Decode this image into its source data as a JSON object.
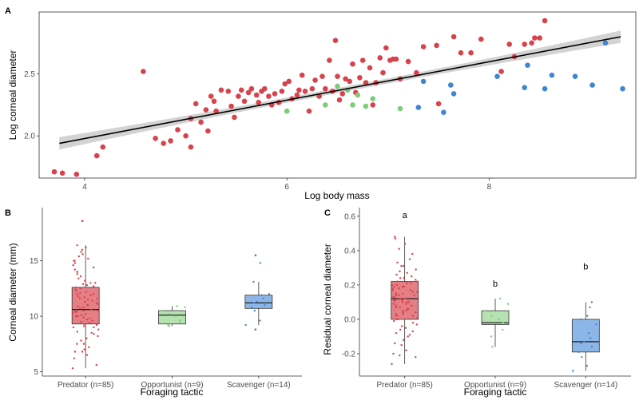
{
  "colors": {
    "Predator": "#d6434d",
    "Opportunist": "#7ecc7a",
    "Scavenger": "#3f86d1",
    "Predator_fill": "#e57f86",
    "Opportunist_fill": "#b5e2b0",
    "Scavenger_fill": "#8db6e8",
    "regression": "#000000",
    "ci_band": "#c8c8c8"
  },
  "chart_data": [
    {
      "panel": "A",
      "type": "scatter",
      "title": "",
      "xlabel": "Log body mass",
      "ylabel": "Log corneal diameter",
      "xlim": [
        3.55,
        9.45
      ],
      "ylim": [
        1.66,
        3.0
      ],
      "xticks": [
        4,
        6,
        8
      ],
      "yticks": [
        2.0,
        2.5
      ],
      "ytick_labels": [
        "2.0",
        "2.5"
      ],
      "grid": false,
      "legend": "none",
      "regression": {
        "x": [
          3.75,
          9.3
        ],
        "y": [
          1.94,
          2.8
        ],
        "ci_halfwidth_ends": 0.05,
        "ci_halfwidth_mid": 0.02
      },
      "series": [
        {
          "name": "Predator",
          "points": [
            [
              3.7,
              1.71
            ],
            [
              3.78,
              1.7
            ],
            [
              3.92,
              1.69
            ],
            [
              4.12,
              1.84
            ],
            [
              4.18,
              1.91
            ],
            [
              4.58,
              2.52
            ],
            [
              4.7,
              1.98
            ],
            [
              4.78,
              1.94
            ],
            [
              4.85,
              1.96
            ],
            [
              4.92,
              2.05
            ],
            [
              5.0,
              2.0
            ],
            [
              5.05,
              1.91
            ],
            [
              5.05,
              2.14
            ],
            [
              5.1,
              2.26
            ],
            [
              5.15,
              2.11
            ],
            [
              5.2,
              2.21
            ],
            [
              5.22,
              2.04
            ],
            [
              5.25,
              2.32
            ],
            [
              5.28,
              2.28
            ],
            [
              5.3,
              2.2
            ],
            [
              5.35,
              2.37
            ],
            [
              5.42,
              2.36
            ],
            [
              5.45,
              2.24
            ],
            [
              5.48,
              2.15
            ],
            [
              5.52,
              2.32
            ],
            [
              5.55,
              2.37
            ],
            [
              5.58,
              2.28
            ],
            [
              5.62,
              2.35
            ],
            [
              5.65,
              2.38
            ],
            [
              5.7,
              2.33
            ],
            [
              5.72,
              2.27
            ],
            [
              5.75,
              2.36
            ],
            [
              5.78,
              2.38
            ],
            [
              5.82,
              2.32
            ],
            [
              5.85,
              2.25
            ],
            [
              5.88,
              2.34
            ],
            [
              5.92,
              2.27
            ],
            [
              5.95,
              2.36
            ],
            [
              5.98,
              2.42
            ],
            [
              6.02,
              2.44
            ],
            [
              6.05,
              2.3
            ],
            [
              6.1,
              2.33
            ],
            [
              6.12,
              2.37
            ],
            [
              6.15,
              2.49
            ],
            [
              6.18,
              2.36
            ],
            [
              6.22,
              2.2
            ],
            [
              6.25,
              2.38
            ],
            [
              6.28,
              2.45
            ],
            [
              6.32,
              2.32
            ],
            [
              6.35,
              2.48
            ],
            [
              6.38,
              2.38
            ],
            [
              6.42,
              2.61
            ],
            [
              6.45,
              2.36
            ],
            [
              6.48,
              2.77
            ],
            [
              6.5,
              2.48
            ],
            [
              6.52,
              2.29
            ],
            [
              6.55,
              2.34
            ],
            [
              6.58,
              2.46
            ],
            [
              6.62,
              2.44
            ],
            [
              6.65,
              2.58
            ],
            [
              6.68,
              2.35
            ],
            [
              6.72,
              2.47
            ],
            [
              6.75,
              2.61
            ],
            [
              6.78,
              2.43
            ],
            [
              6.82,
              2.55
            ],
            [
              6.85,
              2.25
            ],
            [
              6.88,
              2.43
            ],
            [
              6.92,
              2.63
            ],
            [
              6.95,
              2.51
            ],
            [
              6.98,
              2.71
            ],
            [
              7.02,
              2.61
            ],
            [
              7.05,
              2.62
            ],
            [
              7.08,
              2.62
            ],
            [
              7.12,
              2.46
            ],
            [
              7.2,
              2.6
            ],
            [
              7.28,
              2.51
            ],
            [
              7.35,
              2.72
            ],
            [
              7.48,
              2.73
            ],
            [
              7.5,
              2.26
            ],
            [
              7.65,
              2.8
            ],
            [
              7.72,
              2.67
            ],
            [
              7.82,
              2.67
            ],
            [
              7.92,
              2.78
            ],
            [
              8.12,
              2.52
            ],
            [
              8.2,
              2.74
            ],
            [
              8.25,
              2.64
            ],
            [
              8.35,
              2.74
            ],
            [
              8.42,
              2.75
            ],
            [
              8.45,
              2.79
            ],
            [
              8.5,
              2.79
            ],
            [
              8.55,
              2.93
            ]
          ]
        },
        {
          "name": "Opportunist",
          "points": [
            [
              6.0,
              2.2
            ],
            [
              6.38,
              2.25
            ],
            [
              6.5,
              2.4
            ],
            [
              6.6,
              2.37
            ],
            [
              6.65,
              2.25
            ],
            [
              6.7,
              2.33
            ],
            [
              6.78,
              2.24
            ],
            [
              6.85,
              2.3
            ],
            [
              7.12,
              2.22
            ]
          ]
        },
        {
          "name": "Scavenger",
          "points": [
            [
              7.3,
              2.23
            ],
            [
              7.35,
              2.44
            ],
            [
              7.55,
              2.19
            ],
            [
              7.62,
              2.41
            ],
            [
              7.65,
              2.34
            ],
            [
              8.08,
              2.48
            ],
            [
              8.35,
              2.39
            ],
            [
              8.38,
              2.57
            ],
            [
              8.55,
              2.38
            ],
            [
              8.62,
              2.49
            ],
            [
              8.85,
              2.48
            ],
            [
              9.02,
              2.41
            ],
            [
              9.15,
              2.75
            ],
            [
              9.32,
              2.38
            ]
          ]
        }
      ]
    },
    {
      "panel": "B",
      "type": "box",
      "title": "",
      "xlabel": "Foraging tactic",
      "ylabel": "Corneal diameter (mm)",
      "ylim": [
        4.6,
        19.8
      ],
      "yticks": [
        5,
        10,
        15
      ],
      "categories": [
        "Predator (n=85)",
        "Opportunist (n=9)",
        "Scavenger (n=14)"
      ],
      "series_names": [
        "Predator",
        "Opportunist",
        "Scavenger"
      ],
      "boxes": [
        {
          "whisker_low": 5.3,
          "q1": 9.3,
          "median": 10.6,
          "q3": 12.6,
          "whisker_high": 16.4
        },
        {
          "whisker_low": 9.1,
          "q1": 9.3,
          "median": 10.1,
          "q3": 10.5,
          "whisker_high": 10.9
        },
        {
          "whisker_low": 9.2,
          "q1": 10.7,
          "median": 11.2,
          "q3": 11.9,
          "whisker_high": 13.1
        }
      ],
      "jitter": [
        {
          "outliers": [
            18.6
          ],
          "points": [
            5.3,
            5.6,
            6.2,
            6.5,
            6.8,
            7.0,
            7.2,
            7.5,
            7.8,
            8.0,
            8.2,
            8.4,
            8.6,
            8.8,
            9.0,
            9.1,
            9.2,
            9.3,
            9.4,
            9.5,
            9.6,
            9.7,
            9.8,
            9.9,
            10.0,
            10.1,
            10.2,
            10.3,
            10.4,
            10.5,
            10.5,
            10.6,
            10.7,
            10.8,
            10.9,
            11.0,
            11.1,
            11.2,
            11.3,
            11.4,
            11.5,
            11.6,
            11.7,
            11.8,
            11.9,
            12.0,
            12.1,
            12.2,
            12.3,
            12.4,
            12.5,
            12.6,
            12.7,
            12.8,
            12.9,
            13.0,
            13.2,
            13.4,
            13.6,
            13.8,
            14.0,
            14.2,
            14.4,
            14.6,
            14.8,
            15.0,
            15.2,
            15.4,
            15.6,
            15.8,
            16.0,
            16.2,
            16.4,
            9.0,
            10.0,
            11.0,
            12.0,
            13.0,
            14.0,
            15.0,
            8.5,
            7.5,
            6.8,
            11.6,
            10.4
          ]
        },
        {
          "outliers": [],
          "points": [
            9.1,
            9.2,
            9.4,
            9.6,
            10.0,
            10.2,
            10.5,
            10.8,
            10.9
          ]
        },
        {
          "outliers": [
            8.8,
            15.5
          ],
          "points": [
            9.2,
            9.6,
            10.5,
            10.8,
            11.0,
            11.2,
            11.3,
            11.6,
            11.9,
            12.0,
            13.1,
            14.8
          ]
        }
      ]
    },
    {
      "panel": "C",
      "type": "box",
      "title": "",
      "xlabel": "Foraging tactic",
      "ylabel": "Residual corneal diameter",
      "ylim": [
        -0.33,
        0.65
      ],
      "yticks": [
        -0.2,
        0.0,
        0.2,
        0.4,
        0.6
      ],
      "ytick_labels": [
        "-0.2",
        "0.0",
        "0.2",
        "0.4",
        "0.6"
      ],
      "categories": [
        "Predator (n=85)",
        "Opportunist (n=9)",
        "Scavenger (n=14)"
      ],
      "series_names": [
        "Predator",
        "Opportunist",
        "Scavenger"
      ],
      "significance_letters": [
        "a",
        "b",
        "b"
      ],
      "letter_y": [
        0.59,
        0.19,
        0.29
      ],
      "boxes": [
        {
          "whisker_low": -0.26,
          "q1": 0.0,
          "median": 0.12,
          "q3": 0.22,
          "whisker_high": 0.48
        },
        {
          "whisker_low": -0.16,
          "q1": -0.03,
          "median": -0.02,
          "q3": 0.05,
          "whisker_high": 0.12
        },
        {
          "whisker_low": -0.3,
          "q1": -0.19,
          "median": -0.13,
          "q3": 0.0,
          "whisker_high": 0.1
        }
      ],
      "jitter": [
        {
          "outliers": [],
          "points": [
            -0.26,
            -0.22,
            -0.2,
            -0.18,
            -0.15,
            -0.12,
            -0.1,
            -0.08,
            -0.06,
            -0.05,
            -0.03,
            -0.02,
            0.0,
            0.01,
            0.02,
            0.03,
            0.04,
            0.05,
            0.06,
            0.07,
            0.08,
            0.09,
            0.1,
            0.1,
            0.11,
            0.12,
            0.12,
            0.13,
            0.14,
            0.15,
            0.16,
            0.17,
            0.18,
            0.19,
            0.2,
            0.21,
            0.22,
            0.23,
            0.24,
            0.25,
            0.27,
            0.29,
            0.31,
            0.33,
            0.35,
            0.38,
            0.41,
            0.44,
            0.47,
            0.48,
            -0.21,
            -0.14,
            -0.07,
            0.05,
            0.11,
            0.14,
            0.19,
            0.22,
            0.28,
            0.08,
            0.03,
            -0.01,
            0.16,
            0.2,
            0.13,
            0.09,
            0.06,
            0.0,
            -0.04,
            0.24,
            0.31,
            0.12,
            0.15,
            0.18,
            0.02,
            0.1,
            0.07,
            -0.09,
            0.26,
            0.17,
            0.21,
            0.04,
            0.11,
            0.14,
            0.19
          ]
        },
        {
          "outliers": [],
          "points": [
            -0.16,
            -0.1,
            -0.06,
            -0.02,
            0.0,
            0.02,
            0.05,
            0.09,
            0.12
          ]
        },
        {
          "outliers": [],
          "points": [
            -0.3,
            -0.27,
            -0.22,
            -0.19,
            -0.16,
            -0.14,
            -0.13,
            -0.11,
            -0.08,
            -0.03,
            0.0,
            0.02,
            0.07,
            0.1
          ]
        }
      ]
    }
  ]
}
